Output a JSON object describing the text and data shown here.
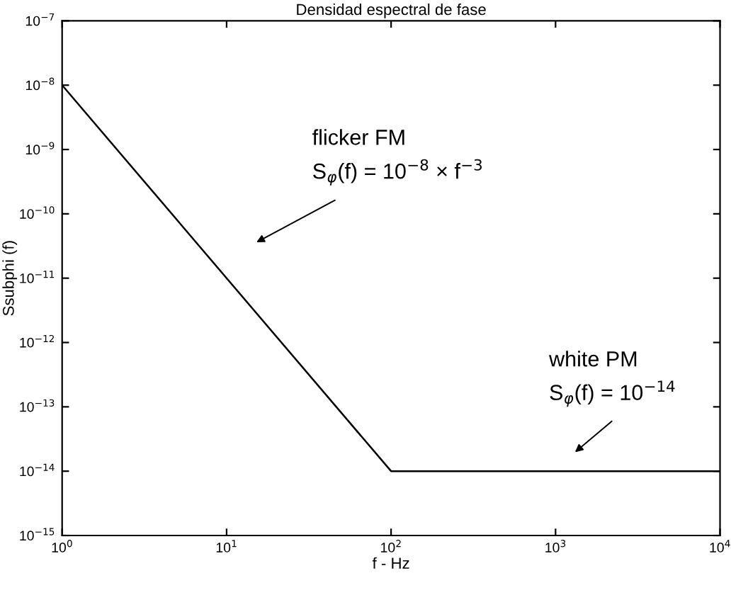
{
  "chart_data": {
    "type": "line",
    "title": "Densidad espectral de fase",
    "xlabel": "f - Hz",
    "ylabel": "Ssubphi (f)",
    "log": "xy",
    "grid": false,
    "legend": false,
    "marker": "none",
    "line_style": "solid",
    "x": [
      1,
      100,
      10000
    ],
    "series": [
      {
        "color": "#000000",
        "values": [
          1e-08,
          1e-14,
          1e-14
        ]
      }
    ],
    "xlim": [
      1,
      10000
    ],
    "xticks": [
      {
        "value": 1,
        "label": "10$^{0}$"
      },
      {
        "value": 10,
        "label": "10$^{1}$"
      },
      {
        "value": 100,
        "label": "10$^{2}$"
      },
      {
        "value": 1000,
        "label": "10$^{3}$"
      },
      {
        "value": 10000,
        "label": "10$^{4}$"
      }
    ],
    "ylim": [
      1e-15,
      1e-07
    ],
    "yticks": [
      {
        "value": 1e-15,
        "label": "10$^{−15}$"
      },
      {
        "value": 1e-14,
        "label": "10$^{−14}$"
      },
      {
        "value": 1e-13,
        "label": "10$^{−13}$"
      },
      {
        "value": 1e-12,
        "label": "10$^{−12}$"
      },
      {
        "value": 1e-11,
        "label": "10$^{−11}$"
      },
      {
        "value": 1e-10,
        "label": "10$^{−10}$"
      },
      {
        "value": 1e-09,
        "label": "10$^{−9}$"
      },
      {
        "value": 1e-08,
        "label": "10$^{−8}$"
      },
      {
        "value": 1e-07,
        "label": "10$^{−7}$"
      }
    ],
    "annotations": [
      "flicker FM\nS$_{φ}$(f) = 10$^{−8}$ × f$^{−3}$",
      "white PM\nS$_{φ}$(f) = 10$^{−14}$"
    ]
  }
}
